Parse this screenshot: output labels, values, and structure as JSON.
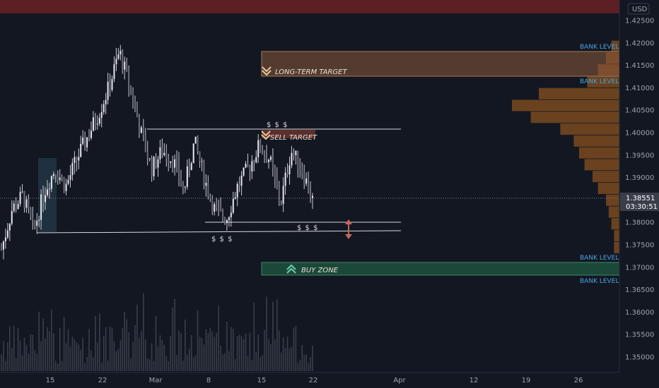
{
  "currency_label": "USD",
  "price_axis": {
    "ticks": [
      "1.42500",
      "1.42000",
      "1.41500",
      "1.41000",
      "1.40500",
      "1.40000",
      "1.39500",
      "1.39000",
      "1.38500",
      "1.38000",
      "1.37500",
      "1.37000",
      "1.36500",
      "1.36000",
      "1.35500",
      "1.35000"
    ]
  },
  "time_axis": {
    "ticks": [
      "15",
      "22",
      "Mar",
      "8",
      "15",
      "22",
      "Apr",
      "12",
      "19",
      "26"
    ]
  },
  "current_price": "1.38551",
  "countdown": "03:30:51",
  "zones": {
    "long_term_target": "LONG-TERM TARGET",
    "sell_target": "SELL TARGET",
    "buy_zone": "BUY ZONE"
  },
  "bank_level_label": "BANK LEVEL",
  "liquidity_label": "$ $ $",
  "colors": {
    "background": "#131722",
    "top_band": "#5c1f24",
    "target_zone": "#8a5a3a",
    "buy_zone": "#1f5a40",
    "profile": "#7a4a1e",
    "candle": "#c8cbd2",
    "bank_level": "#4aa3e0",
    "arrow": "#c8665a"
  },
  "icons": [
    "chevron-down-double-icon",
    "chevron-up-double-icon",
    "vertical-double-arrow-icon"
  ],
  "chart_data": {
    "type": "candlestick",
    "symbol_currency": "USD",
    "ylim": [
      1.3475,
      1.4275
    ],
    "last_price": 1.38551,
    "series": [
      {
        "name": "price_close_approx",
        "values": [
          1.374,
          1.383,
          1.386,
          1.378,
          1.387,
          1.392,
          1.388,
          1.394,
          1.399,
          1.404,
          1.41,
          1.418,
          1.41,
          1.4,
          1.392,
          1.396,
          1.394,
          1.387,
          1.398,
          1.389,
          1.382,
          1.381,
          1.388,
          1.392,
          1.397,
          1.394,
          1.384,
          1.396,
          1.392,
          1.385
        ]
      },
      {
        "name": "volume_profile_rows",
        "values": [
          0.03,
          0.05,
          0.08,
          0.12,
          0.3,
          0.4,
          0.33,
          0.22,
          0.17,
          0.15,
          0.13,
          0.1,
          0.08,
          0.05,
          0.04,
          0.03,
          0.02,
          0.02
        ]
      }
    ]
  }
}
